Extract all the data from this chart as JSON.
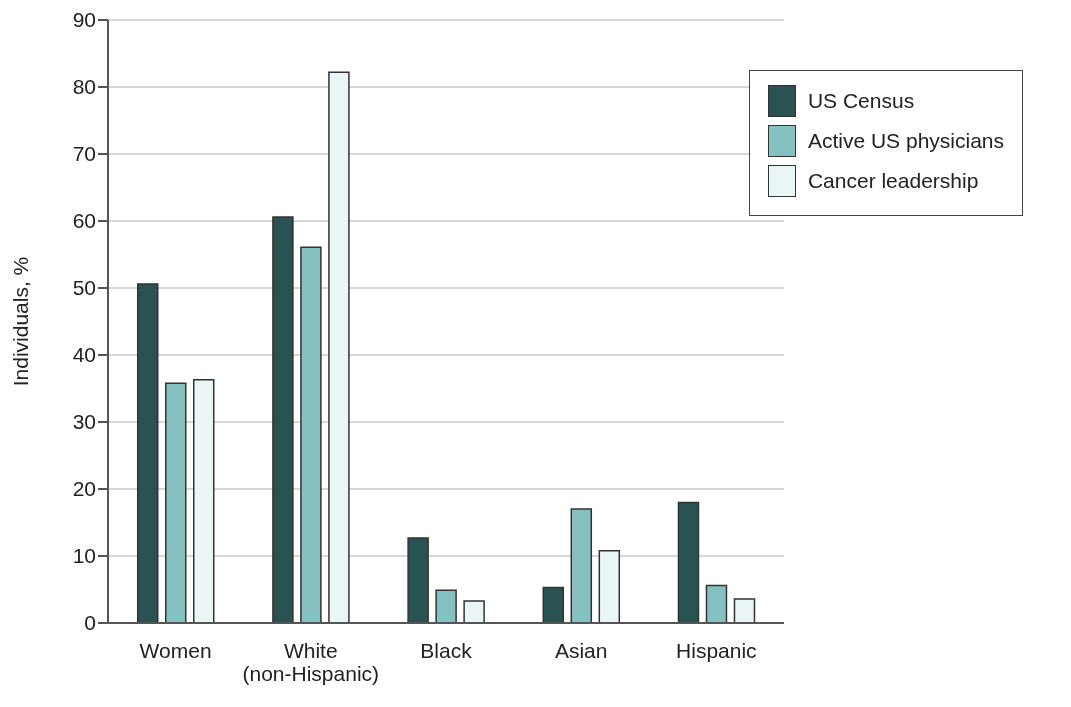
{
  "chart_data": {
    "type": "bar",
    "ylabel": "Individuals, %",
    "categories": [
      "Women",
      "White\n(non-Hispanic)",
      "Black",
      "Asian",
      "Hispanic"
    ],
    "series": [
      {
        "name": "US Census",
        "color": "#2b5252",
        "values": [
          50.6,
          60.6,
          12.7,
          5.3,
          18.0
        ]
      },
      {
        "name": "Active US physicians",
        "color": "#86c1c1",
        "values": [
          35.8,
          56.1,
          4.9,
          17.0,
          5.6
        ]
      },
      {
        "name": "Cancer leadership",
        "color": "#eaf5f5",
        "values": [
          36.3,
          82.2,
          3.3,
          10.8,
          3.6
        ]
      }
    ],
    "ylim": [
      0,
      90
    ],
    "yticks": [
      0,
      10,
      20,
      30,
      40,
      50,
      60,
      70,
      80,
      90
    ],
    "grid": "y",
    "legend": "top right"
  }
}
